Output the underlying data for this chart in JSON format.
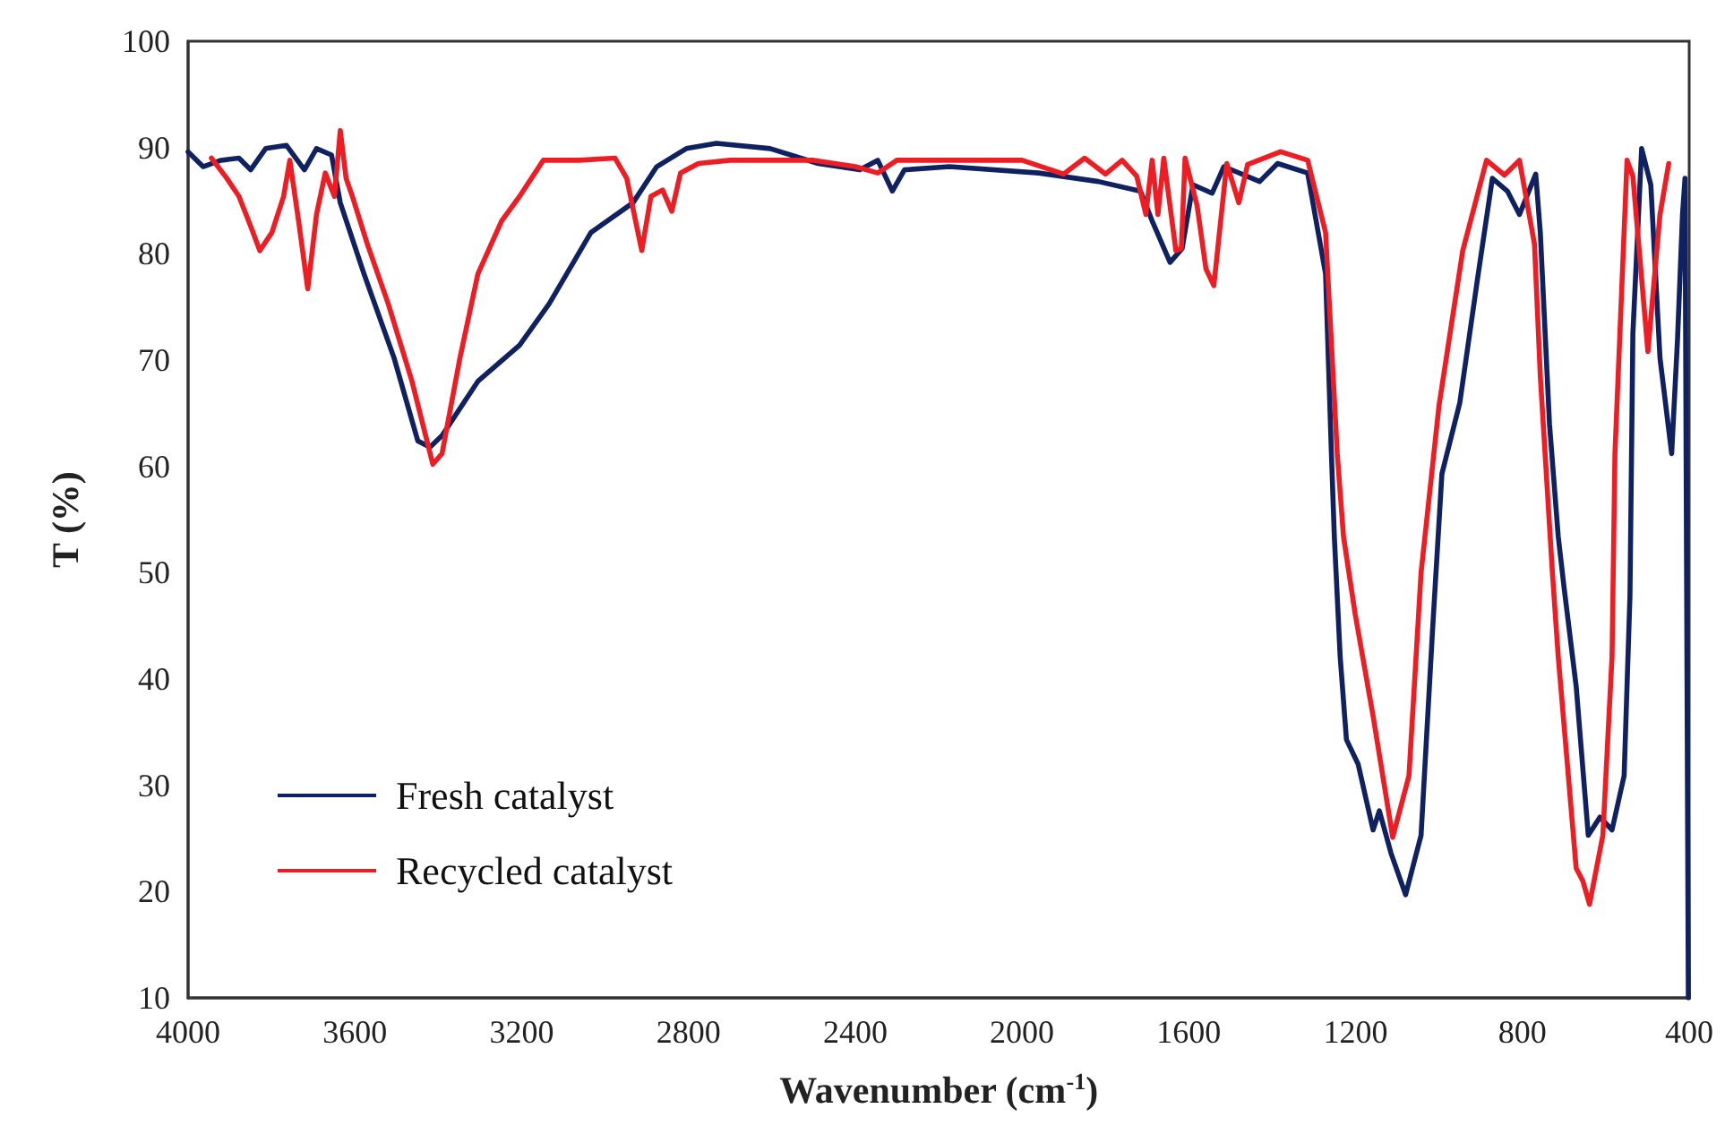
{
  "chart_data": {
    "type": "line",
    "xlabel": "Wavenumber (cm$^{-1}$)",
    "ylabel": "T (%)",
    "xlim": [
      4000,
      400
    ],
    "xticks": [
      4000,
      3600,
      3200,
      2800,
      2400,
      2000,
      1600,
      1200,
      800,
      400
    ],
    "ylim": [
      10,
      100
    ],
    "yticks": [
      10,
      20,
      30,
      40,
      50,
      60,
      70,
      80,
      90,
      100
    ],
    "grid": false,
    "legend": "bottom left",
    "marker": "none",
    "line_style": "solid",
    "series": [
      {
        "name": "Fresh catalyst",
        "color": "#0f2160",
        "x": [
          4000,
          3964,
          3921,
          3878,
          3850,
          3814,
          3764,
          3721,
          3692,
          3656,
          3635,
          3578,
          3506,
          3449,
          3420,
          3391,
          3305,
          3205,
          3134,
          3034,
          2933,
          2876,
          2805,
          2733,
          2604,
          2489,
          2389,
          2346,
          2311,
          2282,
          2174,
          1960,
          1817,
          1716,
          1688,
          1645,
          1616,
          1590,
          1544,
          1516,
          1430,
          1387,
          1315,
          1272,
          1258,
          1251,
          1237,
          1222,
          1194,
          1158,
          1143,
          1115,
          1080,
          1043,
          1015,
          993,
          950,
          907,
          872,
          836,
          807,
          768,
          757,
          735,
          714,
          700,
          671,
          642,
          614,
          585,
          556,
          542,
          535,
          514,
          492,
          470,
          442,
          428,
          416,
          410,
          402
        ],
        "values": [
          89.6,
          88.2,
          88.8,
          89.0,
          87.9,
          89.9,
          90.2,
          87.9,
          89.9,
          89.3,
          84.8,
          78.1,
          70.2,
          62.4,
          61.8,
          62.9,
          68.0,
          71.4,
          75.3,
          82.0,
          84.8,
          88.2,
          89.9,
          90.4,
          89.9,
          88.5,
          87.9,
          88.8,
          85.9,
          87.9,
          88.2,
          87.6,
          86.8,
          85.9,
          83.1,
          79.2,
          80.5,
          86.5,
          85.7,
          88.2,
          86.8,
          88.5,
          87.6,
          78.1,
          61.2,
          53.4,
          42.1,
          34.3,
          32.0,
          25.8,
          27.6,
          23.6,
          19.7,
          25.3,
          44.9,
          59.3,
          66.0,
          77.8,
          87.1,
          85.9,
          83.7,
          87.5,
          82.0,
          64.0,
          53.4,
          48.6,
          39.3,
          25.3,
          27.0,
          25.8,
          30.9,
          47.8,
          72.5,
          89.9,
          86.5,
          70.2,
          61.2,
          71.9,
          83.7,
          87.1,
          10
        ]
      },
      {
        "name": "Recycled catalyst",
        "color": "#ee1d23",
        "x": [
          3944,
          3907,
          3878,
          3850,
          3828,
          3799,
          3771,
          3756,
          3735,
          3713,
          3692,
          3671,
          3649,
          3635,
          3621,
          3606,
          3570,
          3520,
          3463,
          3413,
          3391,
          3348,
          3305,
          3248,
          3205,
          3148,
          3062,
          2976,
          2948,
          2912,
          2890,
          2862,
          2840,
          2819,
          2776,
          2700,
          2500,
          2400,
          2346,
          2300,
          2000,
          1900,
          1850,
          1800,
          1760,
          1725,
          1703,
          1688,
          1674,
          1660,
          1631,
          1618,
          1609,
          1580,
          1559,
          1540,
          1509,
          1480,
          1459,
          1380,
          1315,
          1272,
          1244,
          1229,
          1201,
          1158,
          1111,
          1072,
          1043,
          1000,
          943,
          886,
          843,
          807,
          771,
          757,
          728,
          714,
          671,
          655,
          639,
          607,
          585,
          578,
          549,
          535,
          499,
          470,
          449
        ],
        "values": [
          89.0,
          87.1,
          85.4,
          82.6,
          80.3,
          82.0,
          85.4,
          88.8,
          83.1,
          76.7,
          83.7,
          87.6,
          85.4,
          91.6,
          87.1,
          85.4,
          80.9,
          75.3,
          68.0,
          60.2,
          61.2,
          70.2,
          78.1,
          83.1,
          85.4,
          88.8,
          88.8,
          89.0,
          87.1,
          80.3,
          85.4,
          86.0,
          84.0,
          87.6,
          88.5,
          88.8,
          88.8,
          88.2,
          87.6,
          88.8,
          88.8,
          87.5,
          89.0,
          87.5,
          88.8,
          87.3,
          83.7,
          88.8,
          83.7,
          89.0,
          80.3,
          80.5,
          89.0,
          84.5,
          78.6,
          77.0,
          88.5,
          84.8,
          88.4,
          89.6,
          88.8,
          82.0,
          61.2,
          53.4,
          46.1,
          36.5,
          25.1,
          30.9,
          50.0,
          65.7,
          80.3,
          88.8,
          87.4,
          88.8,
          80.9,
          68.5,
          50.0,
          42.1,
          22.2,
          21.0,
          18.8,
          25.3,
          42.1,
          61.2,
          88.8,
          87.3,
          70.8,
          83.7,
          88.5
        ]
      }
    ]
  }
}
